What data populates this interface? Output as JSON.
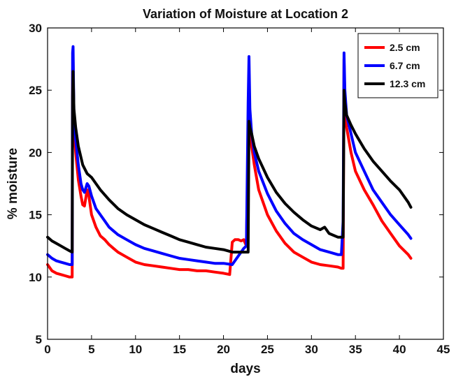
{
  "chart_data": {
    "type": "line",
    "title": "Variation of Moisture at Location 2",
    "xlabel": "days",
    "ylabel": "% moisture",
    "xlim": [
      0,
      45
    ],
    "ylim": [
      5,
      30
    ],
    "xticks": [
      0,
      5,
      10,
      15,
      20,
      25,
      30,
      35,
      40,
      45
    ],
    "yticks": [
      5,
      10,
      15,
      20,
      25,
      30
    ],
    "grid": false,
    "legend_position": "top-right",
    "series": [
      {
        "name": "2.5 cm",
        "color": "#ff0000",
        "x": [
          0,
          0.5,
          1,
          1.5,
          2,
          2.5,
          2.8,
          2.85,
          2.9,
          3.0,
          3.2,
          3.5,
          3.8,
          4.0,
          4.2,
          4.5,
          4.7,
          5.0,
          5.5,
          6,
          6.5,
          7,
          7.5,
          8,
          9,
          10,
          11,
          12,
          13,
          14,
          15,
          16,
          17,
          18,
          19,
          20,
          20.7,
          21.0,
          21.3,
          21.7,
          22.0,
          22.3,
          22.6,
          22.8,
          22.9,
          23.0,
          23.2,
          23.5,
          24,
          25,
          26,
          27,
          28,
          29,
          30,
          31,
          32,
          33,
          33.4,
          33.6,
          33.7,
          33.8,
          34.0,
          34.5,
          35,
          36,
          37,
          38,
          39,
          40,
          41,
          41.3
        ],
        "y": [
          11.0,
          10.5,
          10.3,
          10.2,
          10.1,
          10.0,
          10.0,
          26.5,
          27.5,
          22.0,
          20.0,
          17.8,
          16.5,
          15.8,
          15.7,
          17.0,
          16.5,
          15.0,
          14.0,
          13.3,
          13.0,
          12.6,
          12.3,
          12.0,
          11.6,
          11.2,
          11.0,
          10.9,
          10.8,
          10.7,
          10.6,
          10.6,
          10.5,
          10.5,
          10.4,
          10.3,
          10.2,
          12.8,
          13.0,
          13.0,
          12.9,
          13.0,
          12.5,
          21.0,
          23.5,
          22.0,
          20.5,
          19.0,
          17.0,
          15.0,
          13.7,
          12.7,
          12.0,
          11.6,
          11.2,
          11.0,
          10.9,
          10.8,
          10.7,
          10.7,
          27.5,
          24.0,
          22.0,
          20.0,
          18.5,
          17.0,
          15.8,
          14.5,
          13.5,
          12.5,
          11.8,
          11.5
        ]
      },
      {
        "name": "6.7 cm",
        "color": "#0000ff",
        "x": [
          0,
          0.5,
          1,
          1.5,
          2,
          2.5,
          2.8,
          2.85,
          2.9,
          3.0,
          3.2,
          3.5,
          3.8,
          4.0,
          4.2,
          4.5,
          4.7,
          5.0,
          5.5,
          6,
          6.5,
          7,
          7.5,
          8,
          9,
          10,
          11,
          12,
          13,
          14,
          15,
          16,
          17,
          18,
          19,
          20,
          21,
          21.5,
          22.0,
          22.3,
          22.6,
          22.8,
          22.9,
          23.0,
          23.2,
          23.5,
          24,
          25,
          26,
          27,
          28,
          29,
          30,
          31,
          32,
          33,
          33.4,
          33.6,
          33.7,
          33.8,
          34.0,
          34.5,
          35,
          36,
          37,
          38,
          39,
          40,
          41,
          41.3
        ],
        "y": [
          11.8,
          11.5,
          11.3,
          11.2,
          11.1,
          11.0,
          11.0,
          28.0,
          28.5,
          23.0,
          21.0,
          19.0,
          17.5,
          17.0,
          16.8,
          17.5,
          17.3,
          16.5,
          15.5,
          15.0,
          14.5,
          14.0,
          13.7,
          13.4,
          13.0,
          12.6,
          12.3,
          12.1,
          11.9,
          11.7,
          11.5,
          11.4,
          11.3,
          11.2,
          11.1,
          11.1,
          11.0,
          11.5,
          12.0,
          12.3,
          12.5,
          24.0,
          27.7,
          23.5,
          21.5,
          20.0,
          18.5,
          16.7,
          15.3,
          14.3,
          13.5,
          13.0,
          12.6,
          12.2,
          12.0,
          11.8,
          11.8,
          14.5,
          28.0,
          25.0,
          23.0,
          21.5,
          20.0,
          18.5,
          17.0,
          16.0,
          15.0,
          14.2,
          13.4,
          13.1
        ]
      },
      {
        "name": "12.3 cm",
        "color": "#000000",
        "x": [
          0,
          0.5,
          1,
          1.5,
          2,
          2.5,
          2.8,
          2.85,
          2.9,
          3.0,
          3.2,
          3.5,
          4.0,
          4.5,
          5.0,
          5.5,
          6,
          7,
          8,
          9,
          10,
          11,
          12,
          13,
          14,
          15,
          16,
          17,
          18,
          19,
          20,
          21,
          22,
          22.8,
          22.9,
          23.0,
          23.2,
          23.5,
          24,
          25,
          26,
          27,
          28,
          29,
          30,
          31,
          31.5,
          32,
          33,
          33.6,
          33.7,
          33.8,
          34.0,
          34.5,
          35,
          36,
          37,
          38,
          39,
          40,
          41,
          41.3
        ],
        "y": [
          13.2,
          12.9,
          12.7,
          12.5,
          12.3,
          12.1,
          12.0,
          24.5,
          26.5,
          23.5,
          22.0,
          20.5,
          19.0,
          18.3,
          18.0,
          17.5,
          17.0,
          16.2,
          15.5,
          15.0,
          14.6,
          14.2,
          13.9,
          13.6,
          13.3,
          13.0,
          12.8,
          12.6,
          12.4,
          12.3,
          12.2,
          12.0,
          12.0,
          12.0,
          22.5,
          22.0,
          21.5,
          20.5,
          19.5,
          18.0,
          16.8,
          15.9,
          15.2,
          14.6,
          14.1,
          13.8,
          14.0,
          13.5,
          13.2,
          13.2,
          25.0,
          24.0,
          23.0,
          22.2,
          21.5,
          20.3,
          19.3,
          18.5,
          17.7,
          17.0,
          16.0,
          15.6
        ]
      }
    ]
  }
}
